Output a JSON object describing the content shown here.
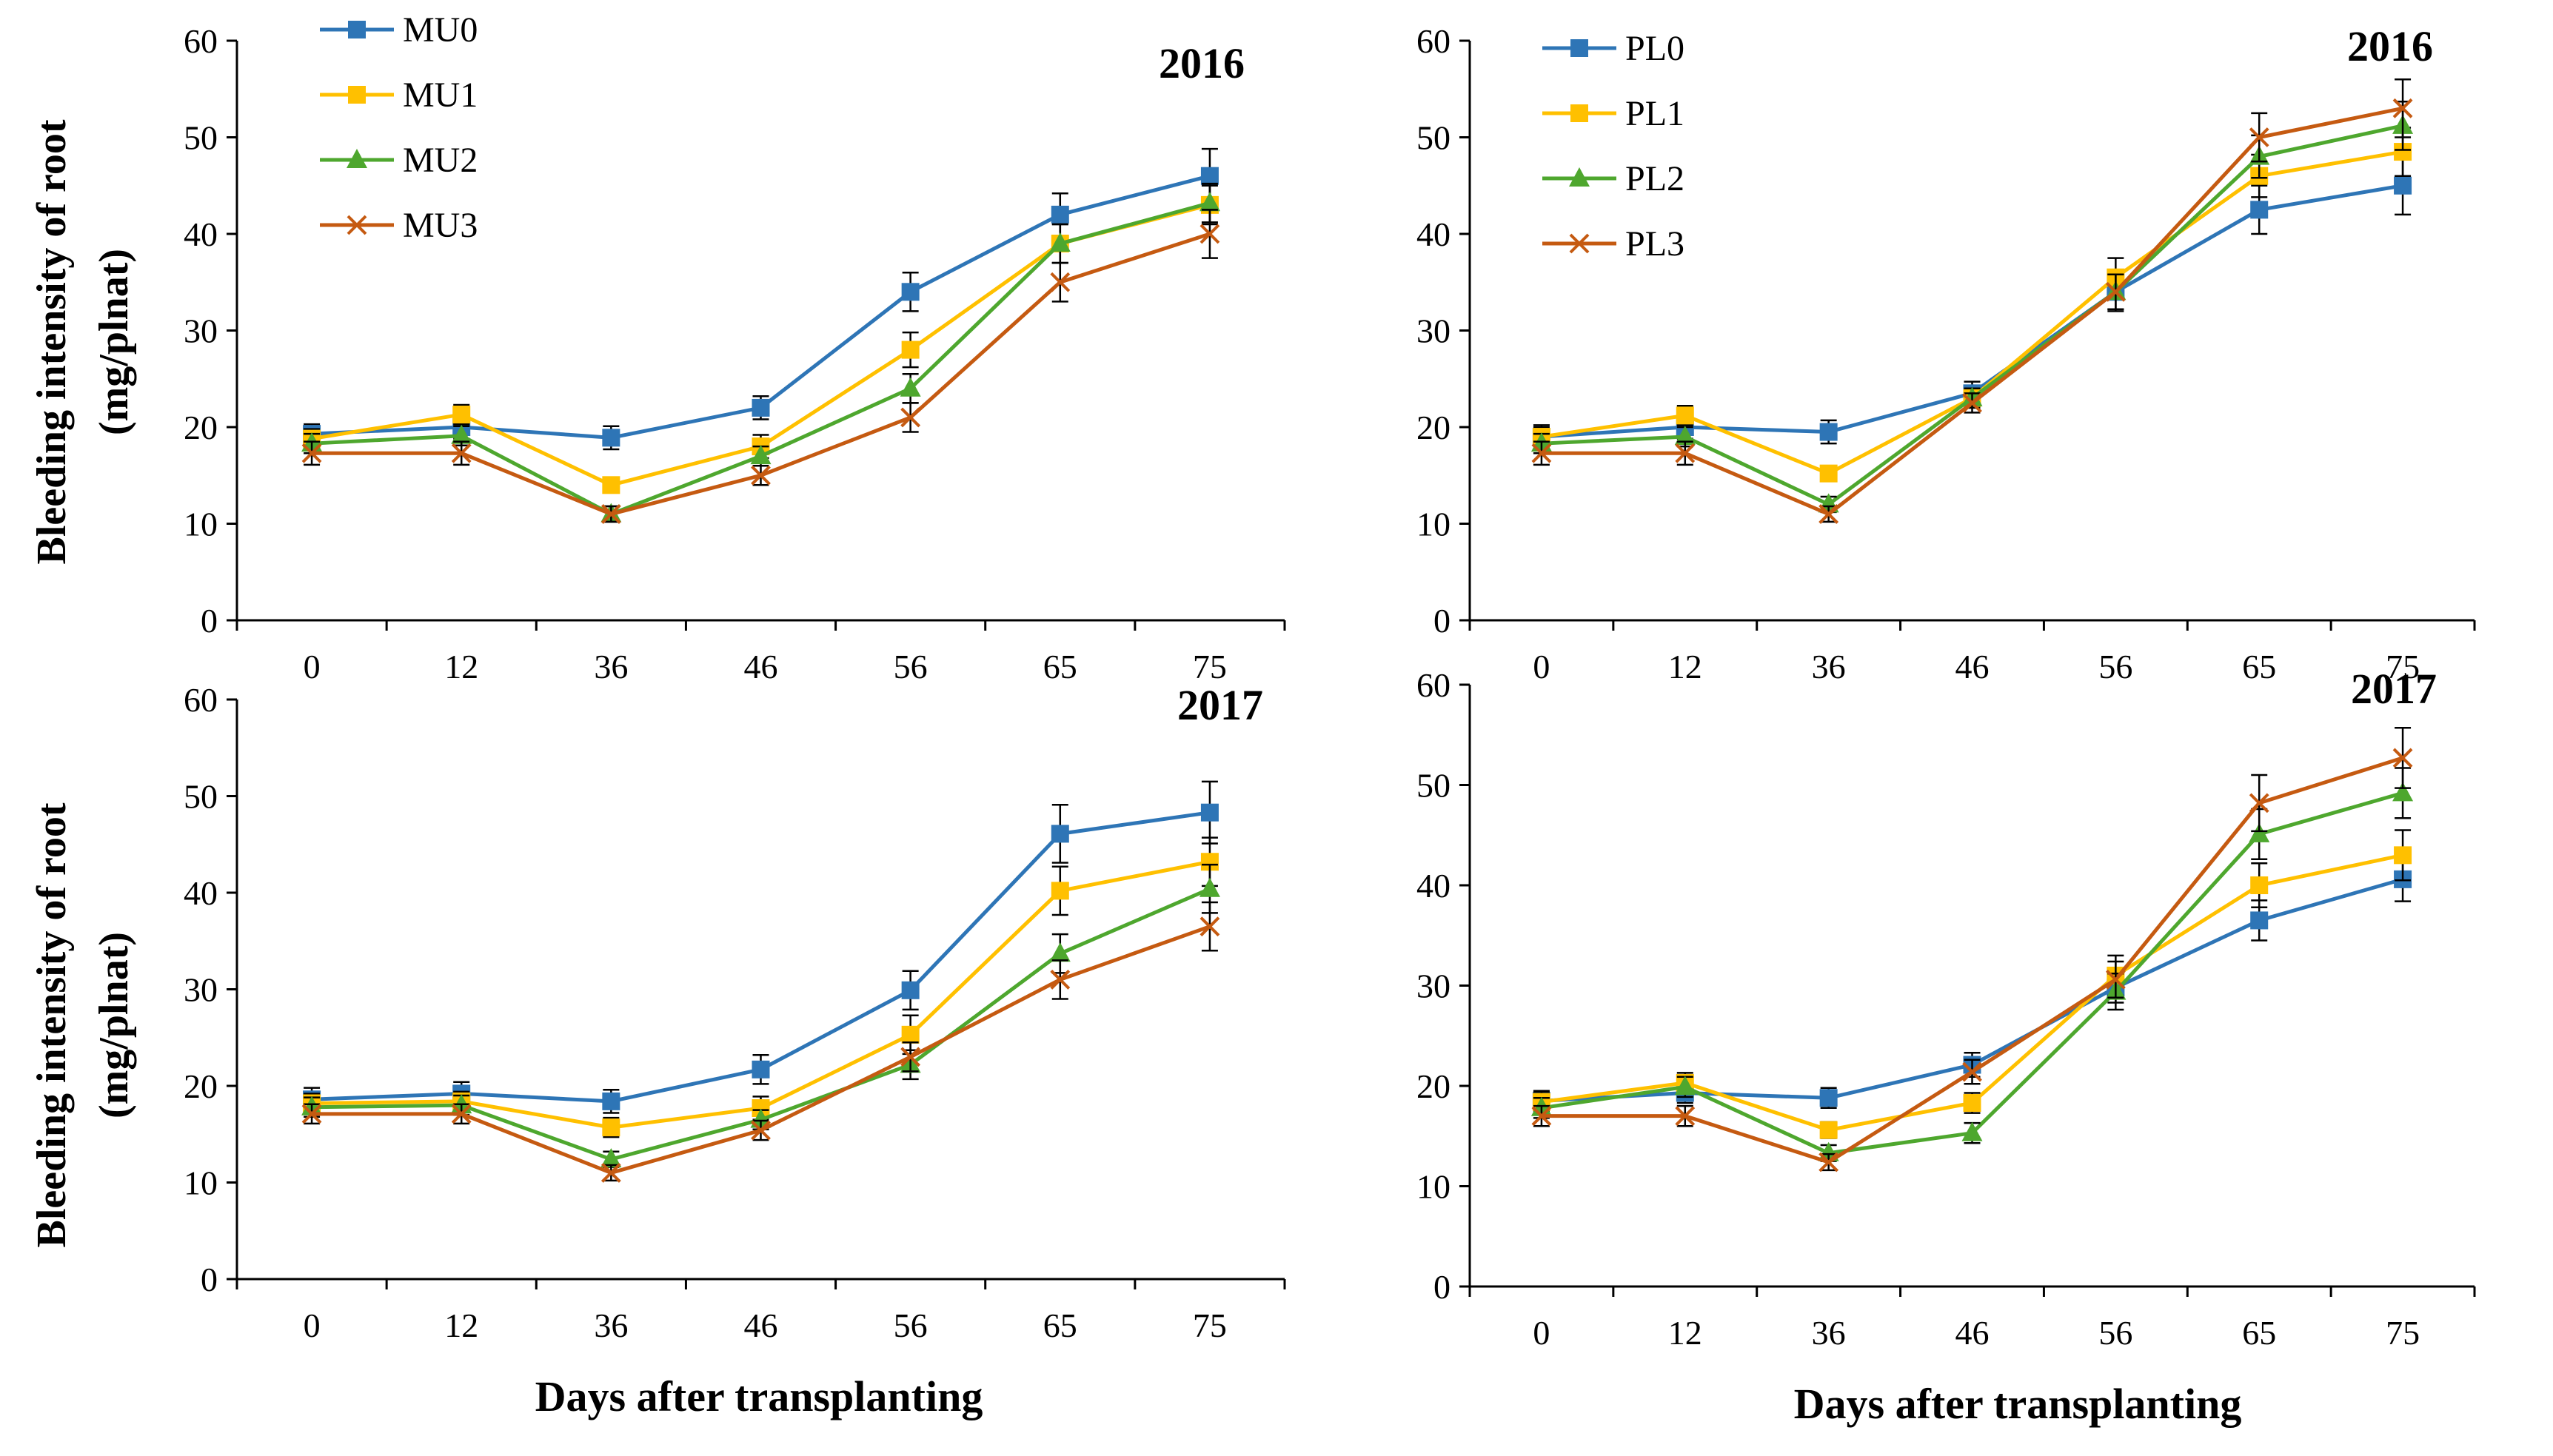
{
  "chart_data": [
    {
      "type": "line",
      "panel": "top-left",
      "year_label": "2016",
      "ylabel_line1": "Bleeding intensity of root",
      "ylabel_line2": "(mg/plnat)",
      "xlabel": "",
      "categories": [
        "0",
        "12",
        "36",
        "46",
        "56",
        "65",
        "75"
      ],
      "ylim": [
        0,
        60
      ],
      "yticks": [
        0,
        10,
        20,
        30,
        40,
        50,
        60
      ],
      "legend_position": "top-left",
      "series": [
        {
          "name": "MU0",
          "color": "#2E75B6",
          "marker": "square",
          "values": [
            19.3,
            20,
            18.9,
            22,
            34,
            42,
            46
          ],
          "errors": [
            1,
            1.2,
            1.2,
            1.2,
            2,
            2.2,
            2.8
          ]
        },
        {
          "name": "MU1",
          "color": "#FFC000",
          "marker": "square",
          "values": [
            18.8,
            21.3,
            14,
            18,
            28,
            39,
            43
          ],
          "errors": [
            1,
            1,
            0.8,
            1.2,
            1.8,
            2,
            2
          ]
        },
        {
          "name": "MU2",
          "color": "#4EA72E",
          "marker": "triangle",
          "values": [
            18.3,
            19.1,
            11,
            17,
            24,
            39,
            43.2
          ],
          "errors": [
            1,
            1,
            0.8,
            1,
            1.5,
            2,
            2
          ]
        },
        {
          "name": "MU3",
          "color": "#C55A11",
          "marker": "x",
          "values": [
            17.3,
            17.3,
            11,
            15,
            21,
            35,
            40
          ],
          "errors": [
            1.2,
            1.2,
            0.8,
            1,
            1.5,
            2,
            2.5
          ]
        }
      ]
    },
    {
      "type": "line",
      "panel": "top-right",
      "year_label": "2016",
      "xlabel": "",
      "categories": [
        "0",
        "12",
        "36",
        "46",
        "56",
        "65",
        "75"
      ],
      "ylim": [
        0,
        60
      ],
      "yticks": [
        0,
        10,
        20,
        30,
        40,
        50,
        60
      ],
      "legend_position": "top-left",
      "series": [
        {
          "name": "PL0",
          "color": "#2E75B6",
          "marker": "square",
          "values": [
            19,
            20,
            19.5,
            23.5,
            34,
            42.5,
            45
          ],
          "errors": [
            1.2,
            1.2,
            1.2,
            1.2,
            2,
            2.5,
            3
          ]
        },
        {
          "name": "PL1",
          "color": "#FFC000",
          "marker": "square",
          "values": [
            19,
            21.2,
            15.2,
            23,
            35.5,
            46,
            48.5
          ],
          "errors": [
            1,
            1,
            0.8,
            1,
            2,
            2.2,
            2.5
          ]
        },
        {
          "name": "PL2",
          "color": "#4EA72E",
          "marker": "triangle",
          "values": [
            18.3,
            19,
            12,
            23,
            34,
            48,
            51.2
          ],
          "errors": [
            1,
            1,
            0.8,
            1,
            1.8,
            2.2,
            2.5
          ]
        },
        {
          "name": "PL3",
          "color": "#C55A11",
          "marker": "x",
          "values": [
            17.3,
            17.3,
            11,
            22.5,
            34,
            50,
            53
          ],
          "errors": [
            1.2,
            1.2,
            0.8,
            1,
            1.8,
            2.5,
            3
          ]
        }
      ]
    },
    {
      "type": "line",
      "panel": "bottom-left",
      "year_label": "2017",
      "ylabel_line1": "Bleeding intensity of root",
      "ylabel_line2": "(mg/plnat)",
      "xlabel": "Days after transplanting",
      "categories": [
        "0",
        "12",
        "36",
        "46",
        "56",
        "65",
        "75"
      ],
      "ylim": [
        0,
        60
      ],
      "yticks": [
        0,
        10,
        20,
        30,
        40,
        50,
        60
      ],
      "series": [
        {
          "name": "MU0",
          "color": "#2E75B6",
          "marker": "square",
          "values": [
            18.6,
            19.2,
            18.4,
            21.7,
            29.9,
            46.1,
            48.3
          ],
          "errors": [
            1.2,
            1.2,
            1.2,
            1.5,
            2,
            3,
            3.2
          ]
        },
        {
          "name": "MU1",
          "color": "#FFC000",
          "marker": "square",
          "values": [
            18.2,
            18.4,
            15.7,
            17.7,
            25.3,
            40.2,
            43.2
          ],
          "errors": [
            1,
            1,
            1,
            1.2,
            2,
            2.5,
            2.5
          ]
        },
        {
          "name": "MU2",
          "color": "#4EA72E",
          "marker": "triangle",
          "values": [
            17.8,
            18,
            12.4,
            16.5,
            22.2,
            33.7,
            40.4
          ],
          "errors": [
            1,
            1,
            0.8,
            1,
            1.5,
            2,
            2.5
          ]
        },
        {
          "name": "MU3",
          "color": "#C55A11",
          "marker": "x",
          "values": [
            17.1,
            17.1,
            11,
            15.4,
            23,
            31,
            36.5
          ],
          "errors": [
            1,
            1,
            0.8,
            1,
            1.5,
            2,
            2.5
          ]
        }
      ]
    },
    {
      "type": "line",
      "panel": "bottom-right",
      "year_label": "2017",
      "xlabel": "Days after transplanting",
      "categories": [
        "0",
        "12",
        "36",
        "46",
        "56",
        "65",
        "75"
      ],
      "ylim": [
        0,
        60
      ],
      "yticks": [
        0,
        10,
        20,
        30,
        40,
        50,
        60
      ],
      "series": [
        {
          "name": "PL0",
          "color": "#2E75B6",
          "marker": "square",
          "values": [
            18.5,
            19.3,
            18.8,
            22.1,
            29.8,
            36.5,
            40.6
          ],
          "errors": [
            1,
            1,
            1,
            1.2,
            1.5,
            2,
            2.2
          ]
        },
        {
          "name": "PL1",
          "color": "#FFC000",
          "marker": "square",
          "values": [
            18.4,
            20.3,
            15.6,
            18.3,
            31,
            40,
            43
          ],
          "errors": [
            1,
            1,
            0.8,
            1,
            2,
            2.2,
            2.5
          ]
        },
        {
          "name": "PL2",
          "color": "#4EA72E",
          "marker": "triangle",
          "values": [
            17.8,
            19.9,
            13.3,
            15.3,
            29.4,
            45.1,
            49.2
          ],
          "errors": [
            1,
            1,
            0.8,
            1,
            1.8,
            2.5,
            2.5
          ]
        },
        {
          "name": "PL3",
          "color": "#C55A11",
          "marker": "x",
          "values": [
            17,
            17,
            12.4,
            21.4,
            30.6,
            48.2,
            52.7
          ],
          "errors": [
            1,
            1,
            0.8,
            1.2,
            1.8,
            2.8,
            3
          ]
        }
      ]
    }
  ]
}
